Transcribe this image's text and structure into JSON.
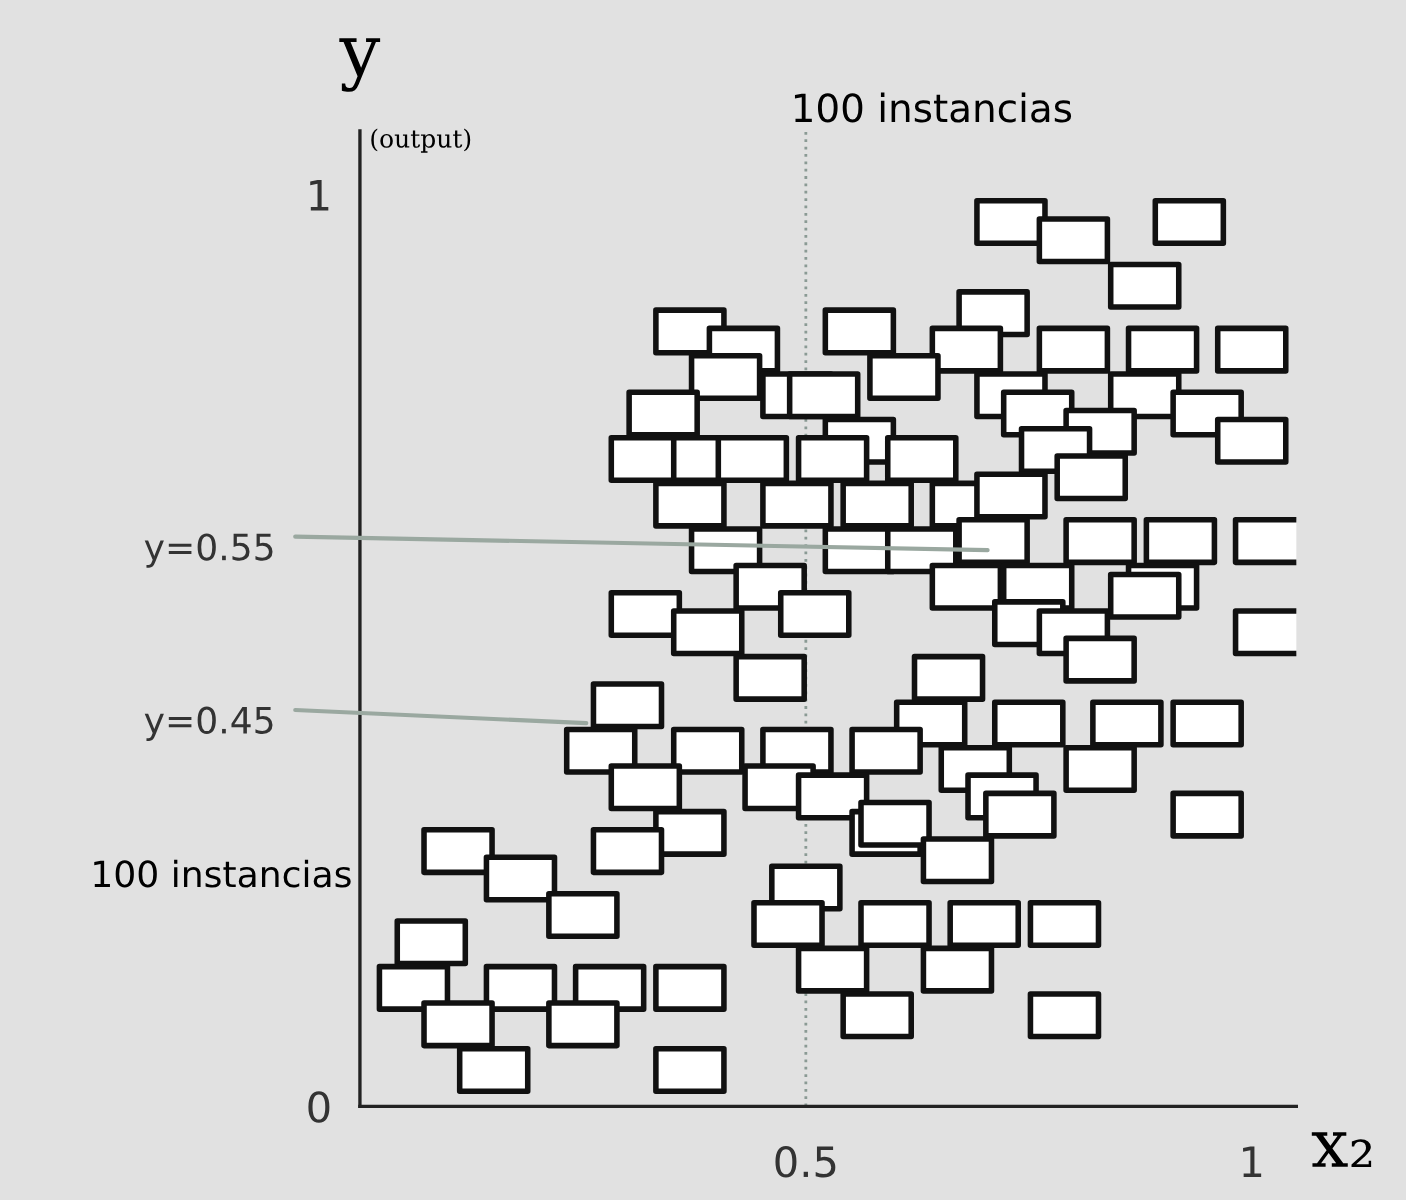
{
  "chart_data": {
    "type": "scatter",
    "xlabel": "x₂",
    "ylabel": "y",
    "annotations": [
      "(output)",
      "100 instancias",
      "100 instancias",
      {
        "text": "y=0.55",
        "x": 0.71,
        "y": 0.61
      },
      {
        "text": "y=0.45",
        "x": 0.26,
        "y": 0.42
      }
    ],
    "xlim": [
      0,
      1.05
    ],
    "ylim": [
      0,
      1.07
    ],
    "xticks": [
      0.5,
      1
    ],
    "yticks": [
      0,
      1
    ],
    "marker": "square",
    "ref_lines": [
      {
        "axis": "x",
        "value": 0.5,
        "line_style": "dotted",
        "color": "#8a9a94"
      }
    ],
    "series": [
      {
        "color": "#ffffff",
        "x": [
          0.73,
          0.8,
          0.93,
          0.88,
          0.71,
          0.37,
          0.43,
          0.56,
          0.68,
          0.8,
          0.9,
          1.0,
          0.41,
          0.49,
          0.52,
          0.61,
          0.73,
          0.76,
          0.88,
          0.95,
          0.83,
          0.78,
          1.0,
          0.34,
          0.56,
          0.32,
          0.39,
          0.44,
          0.53,
          0.63,
          0.82,
          0.37,
          0.49,
          0.58,
          0.68,
          0.73,
          0.41,
          0.56,
          0.63,
          0.71,
          0.83,
          0.92,
          1.02,
          0.46,
          0.68,
          0.76,
          0.9,
          0.88,
          0.75,
          0.8,
          0.83,
          1.02,
          0.32,
          0.39,
          0.51,
          0.46,
          0.3,
          0.66,
          0.64,
          0.75,
          0.86,
          0.95,
          0.27,
          0.39,
          0.49,
          0.59,
          0.69,
          0.83,
          0.32,
          0.47,
          0.53,
          0.59,
          0.6,
          0.72,
          0.74,
          0.95,
          0.37,
          0.3,
          0.67,
          0.11,
          0.18,
          0.25,
          0.5,
          0.48,
          0.6,
          0.7,
          0.79,
          0.08,
          0.06,
          0.18,
          0.28,
          0.37,
          0.53,
          0.67,
          0.11,
          0.25,
          0.58,
          0.79,
          0.15,
          0.37
        ],
        "values": [
          0.97,
          0.95,
          0.97,
          0.9,
          0.87,
          0.85,
          0.83,
          0.85,
          0.83,
          0.83,
          0.83,
          0.83,
          0.8,
          0.78,
          0.78,
          0.8,
          0.78,
          0.76,
          0.78,
          0.76,
          0.74,
          0.72,
          0.73,
          0.76,
          0.73,
          0.71,
          0.71,
          0.71,
          0.71,
          0.71,
          0.69,
          0.66,
          0.66,
          0.66,
          0.66,
          0.67,
          0.61,
          0.61,
          0.61,
          0.62,
          0.62,
          0.62,
          0.62,
          0.57,
          0.57,
          0.57,
          0.57,
          0.56,
          0.53,
          0.52,
          0.49,
          0.52,
          0.54,
          0.52,
          0.54,
          0.47,
          0.44,
          0.47,
          0.42,
          0.42,
          0.42,
          0.42,
          0.39,
          0.39,
          0.39,
          0.39,
          0.37,
          0.37,
          0.35,
          0.35,
          0.34,
          0.3,
          0.31,
          0.34,
          0.32,
          0.32,
          0.3,
          0.28,
          0.27,
          0.28,
          0.25,
          0.21,
          0.24,
          0.2,
          0.2,
          0.2,
          0.2,
          0.18,
          0.13,
          0.13,
          0.13,
          0.13,
          0.15,
          0.15,
          0.09,
          0.09,
          0.1,
          0.1,
          0.04,
          0.04
        ]
      }
    ]
  }
}
